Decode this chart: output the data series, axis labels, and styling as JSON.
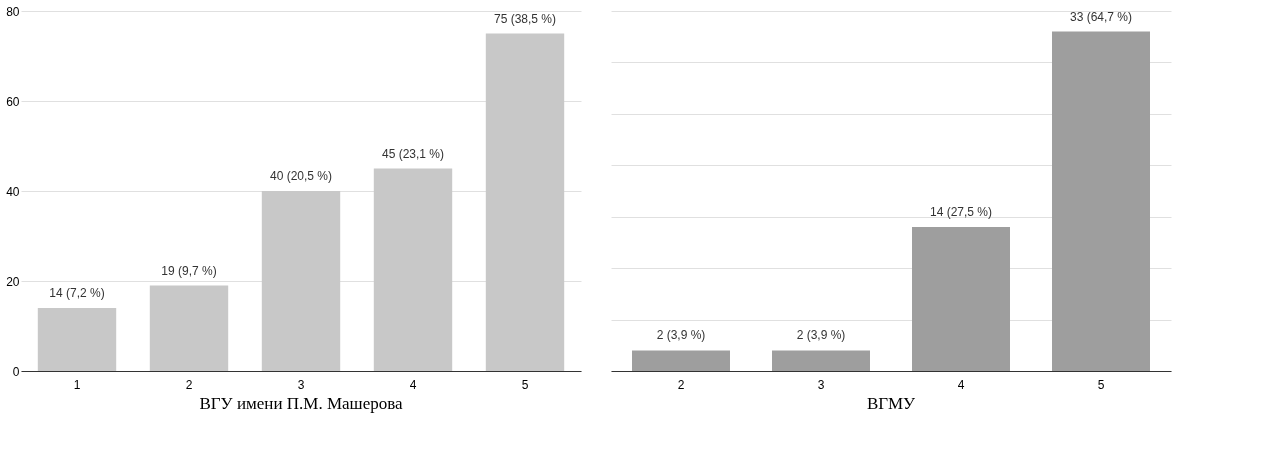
{
  "chart_data": [
    {
      "type": "bar",
      "title": "ВГУ имени П.М. Машерова",
      "categories": [
        "1",
        "2",
        "3",
        "4",
        "5"
      ],
      "values": [
        14,
        19,
        40,
        45,
        75
      ],
      "color": "#c8c8c8",
      "value_labels": [
        "14 (7,2 %)",
        "19 (9,7 %)",
        "40 (20,5 %)",
        "45 (23,1 %)",
        "75 (38,5 %)"
      ],
      "ylim": [
        0,
        80
      ],
      "yticks": [
        0,
        20,
        40,
        60,
        80
      ],
      "grid": "y"
    },
    {
      "type": "bar",
      "title": "ВГМУ",
      "categories": [
        "2",
        "3",
        "4",
        "5"
      ],
      "values": [
        2,
        2,
        14,
        33
      ],
      "color": "#9e9e9e",
      "value_labels": [
        "2 (3,9 %)",
        "2 (3,9 %)",
        "14 (27,5 %)",
        "33 (64,7 %)"
      ],
      "ylim": [
        0,
        35
      ],
      "yticks": [
        {
          "value": 0,
          "label": null
        },
        {
          "value": 5,
          "label": null
        },
        {
          "value": 10,
          "label": null
        },
        {
          "value": 15,
          "label": null
        },
        {
          "value": 20,
          "label": null
        },
        {
          "value": 25,
          "label": null
        },
        {
          "value": 30,
          "label": null
        },
        {
          "value": 35,
          "label": null
        }
      ],
      "grid": "y",
      "tick_labels": "x"
    }
  ]
}
